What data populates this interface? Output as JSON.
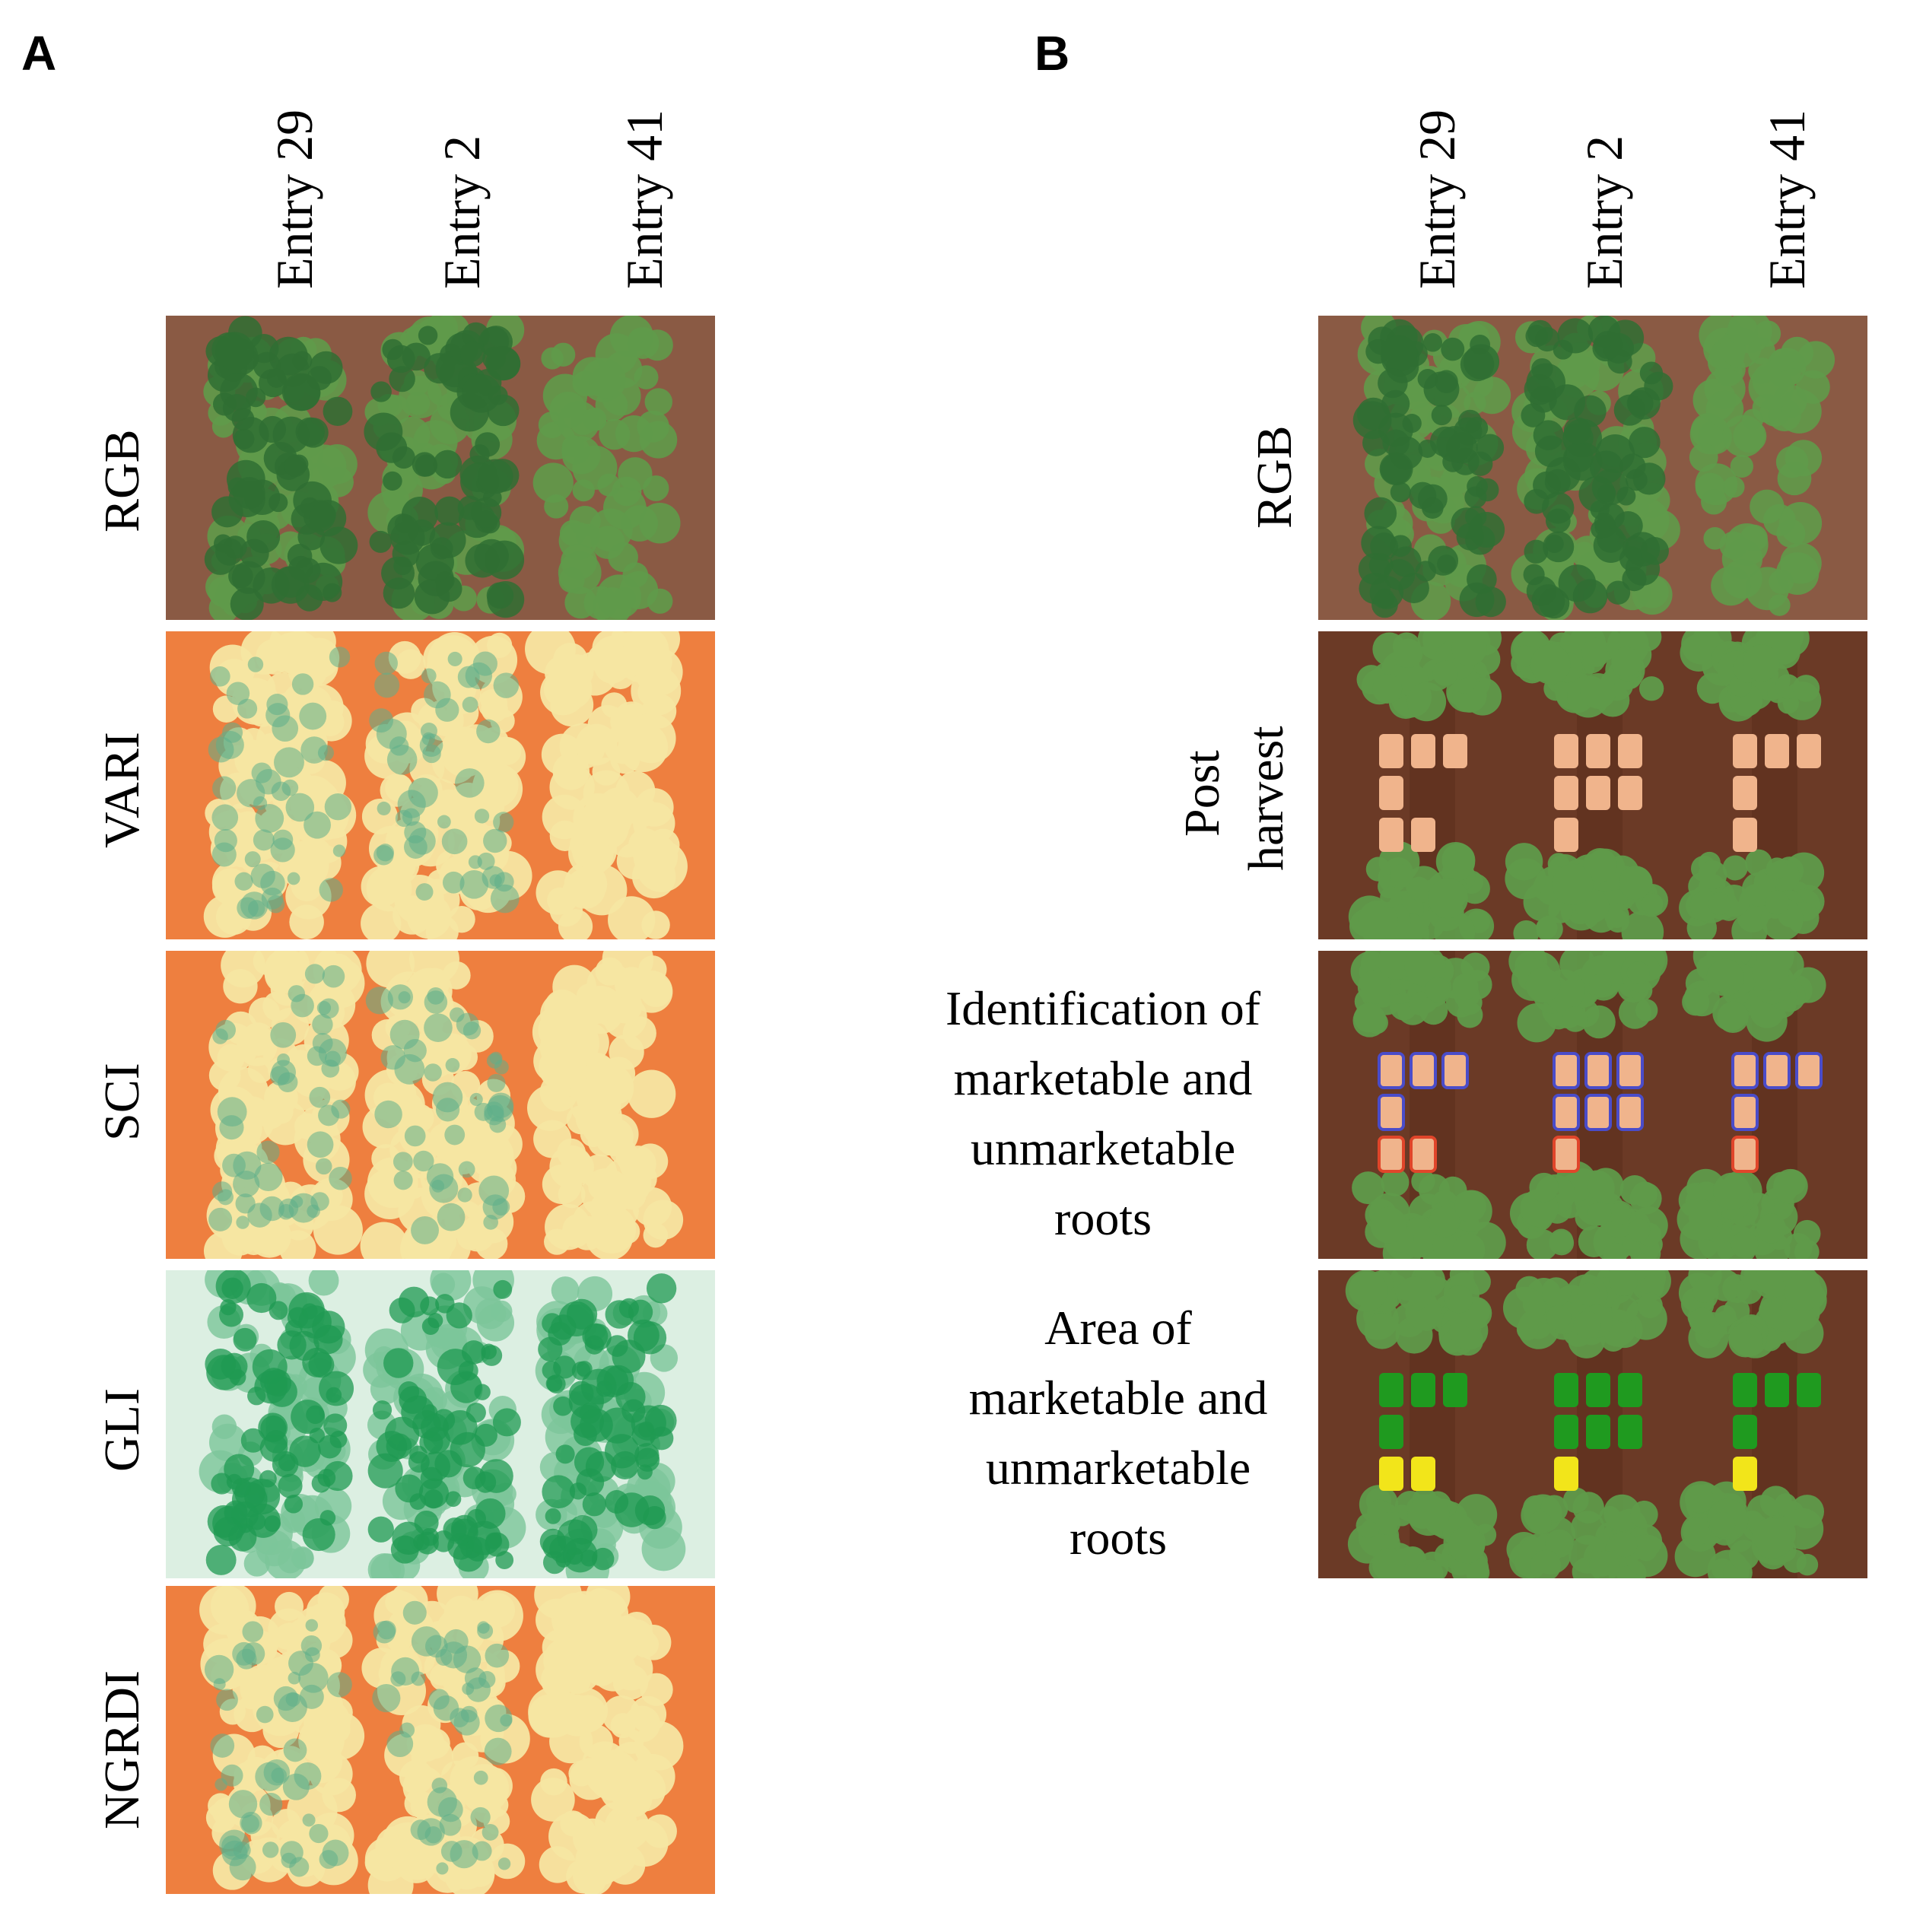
{
  "panels": [
    {
      "letter": "A",
      "columns": [
        "Entry 29",
        "Entry 2",
        "Entry 41"
      ],
      "rows": [
        {
          "label": "RGB",
          "style": "rgb"
        },
        {
          "label": "VARI",
          "style": "heat"
        },
        {
          "label": "SCI",
          "style": "heat"
        },
        {
          "label": "GLI",
          "style": "gli"
        },
        {
          "label": "NGRDI",
          "style": "heat"
        }
      ]
    },
    {
      "letter": "B",
      "columns": [
        "Entry 29",
        "Entry 2",
        "Entry 41"
      ],
      "rows": [
        {
          "label": "RGB",
          "style": "rgb"
        },
        {
          "label": "Post harvest",
          "lines": [
            "Post",
            "harvest"
          ],
          "style": "post"
        },
        {
          "label": "Identification of marketable and unmarketable roots",
          "lines": [
            "Identification of",
            "marketable and",
            "unmarketable",
            "roots"
          ],
          "style": "ident"
        },
        {
          "label": "Area of marketable and unmarketable roots",
          "lines": [
            "Area of",
            "marketable and",
            "unmarketable",
            "roots"
          ],
          "style": "area"
        }
      ]
    }
  ],
  "colors": {
    "soil": "#8a5a44",
    "soil_dark": "#6b3a26",
    "canopy_dark": "#2f6e33",
    "canopy_light": "#5f9a4a",
    "heat_low": "#ee7f3f",
    "heat_mid": "#f5e6a2",
    "heat_high": "#5fae8a",
    "gli_bg": "#dcefe2",
    "gli_high": "#1f9a52",
    "root": "#f0b48c",
    "marketable_outline": "#4a4cc9",
    "unmarketable_outline": "#e0452a",
    "marketable_fill": "#1f9a1f",
    "unmarketable_fill": "#f2e51a"
  }
}
